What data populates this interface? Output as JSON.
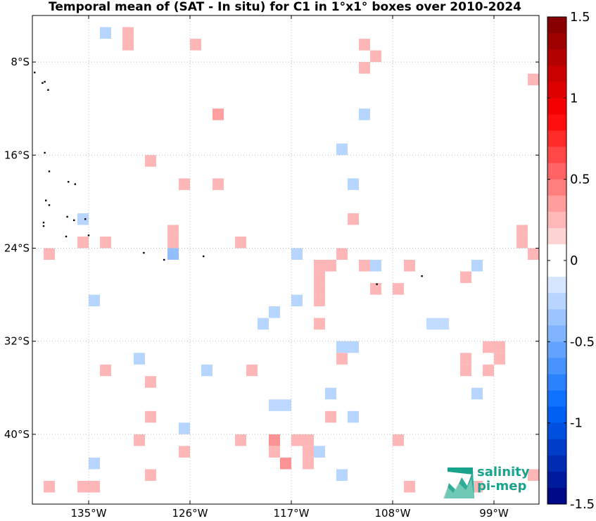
{
  "title": "Temporal mean of (SAT - In situ) for C1 in 1°x1° boxes over 2010-2024",
  "logo": {
    "line1": "salinity",
    "line2": "pi-mep"
  },
  "chart_data": {
    "type": "heatmap",
    "lon_range": [
      -140,
      -95
    ],
    "lat_range": [
      -46,
      -4
    ],
    "x_ticks": [
      -135,
      -126,
      -117,
      -108,
      -99
    ],
    "x_tick_labels": [
      "135°W",
      "126°W",
      "117°W",
      "108°W",
      "99°W"
    ],
    "y_ticks": [
      -8,
      -16,
      -24,
      -32,
      -40
    ],
    "y_tick_labels": [
      "8°S",
      "16°S",
      "24°S",
      "32°S",
      "40°S"
    ],
    "grid": true,
    "colorbar": {
      "range": [
        -1.5,
        1.5
      ],
      "ticks": [
        1.5,
        1,
        0.5,
        0,
        -0.5,
        -1,
        -1.5
      ],
      "tick_labels": [
        "1.5",
        "1",
        "0.5",
        "0",
        "-0.5",
        "-1",
        "-1.5"
      ],
      "n_levels": 30,
      "legend_placement": "right"
    },
    "cells": [
      {
        "lon": -133.5,
        "lat": -5.5,
        "value": -0.15
      },
      {
        "lon": -131.5,
        "lat": -5.5,
        "value": 0.15
      },
      {
        "lon": -131.5,
        "lat": -6.5,
        "value": 0.15
      },
      {
        "lon": -125.5,
        "lat": -6.5,
        "value": 0.15
      },
      {
        "lon": -110.5,
        "lat": -6.5,
        "value": 0.15
      },
      {
        "lon": -109.5,
        "lat": -7.5,
        "value": 0.15
      },
      {
        "lon": -110.5,
        "lat": -8.5,
        "value": 0.15
      },
      {
        "lon": -95.5,
        "lat": -9.5,
        "value": 0.15
      },
      {
        "lon": -123.5,
        "lat": -12.5,
        "value": 0.25
      },
      {
        "lon": -110.5,
        "lat": -12.5,
        "value": -0.15
      },
      {
        "lon": -112.5,
        "lat": -15.5,
        "value": -0.15
      },
      {
        "lon": -129.5,
        "lat": -16.5,
        "value": 0.15
      },
      {
        "lon": -126.5,
        "lat": -18.5,
        "value": 0.15
      },
      {
        "lon": -123.5,
        "lat": -18.5,
        "value": 0.15
      },
      {
        "lon": -111.5,
        "lat": -18.5,
        "value": -0.15
      },
      {
        "lon": -135.5,
        "lat": -21.5,
        "value": -0.15
      },
      {
        "lon": -111.5,
        "lat": -21.5,
        "value": 0.15
      },
      {
        "lon": -127.5,
        "lat": -22.5,
        "value": 0.15
      },
      {
        "lon": -96.5,
        "lat": -22.5,
        "value": 0.15
      },
      {
        "lon": -135.5,
        "lat": -23.5,
        "value": 0.15
      },
      {
        "lon": -133.5,
        "lat": -23.5,
        "value": 0.15
      },
      {
        "lon": -127.5,
        "lat": -23.5,
        "value": 0.15
      },
      {
        "lon": -121.5,
        "lat": -23.5,
        "value": 0.15
      },
      {
        "lon": -96.5,
        "lat": -23.5,
        "value": 0.15
      },
      {
        "lon": -138.5,
        "lat": -24.5,
        "value": 0.15
      },
      {
        "lon": -127.5,
        "lat": -24.5,
        "value": -0.3
      },
      {
        "lon": -116.5,
        "lat": -24.5,
        "value": -0.15
      },
      {
        "lon": -112.5,
        "lat": -24.5,
        "value": 0.15
      },
      {
        "lon": -95.5,
        "lat": -24.5,
        "value": 0.15
      },
      {
        "lon": -114.5,
        "lat": -25.5,
        "value": 0.15
      },
      {
        "lon": -113.5,
        "lat": -25.5,
        "value": 0.15
      },
      {
        "lon": -110.5,
        "lat": -25.5,
        "value": 0.15
      },
      {
        "lon": -109.5,
        "lat": -25.5,
        "value": -0.15
      },
      {
        "lon": -106.5,
        "lat": -25.5,
        "value": 0.15
      },
      {
        "lon": -100.5,
        "lat": -25.5,
        "value": -0.15
      },
      {
        "lon": -114.5,
        "lat": -26.5,
        "value": 0.15
      },
      {
        "lon": -101.5,
        "lat": -26.5,
        "value": 0.15
      },
      {
        "lon": -114.5,
        "lat": -27.5,
        "value": 0.15
      },
      {
        "lon": -109.5,
        "lat": -27.5,
        "value": 0.15
      },
      {
        "lon": -107.5,
        "lat": -27.5,
        "value": 0.15
      },
      {
        "lon": -134.5,
        "lat": -28.5,
        "value": -0.15
      },
      {
        "lon": -116.5,
        "lat": -28.5,
        "value": -0.15
      },
      {
        "lon": -114.5,
        "lat": -28.5,
        "value": 0.15
      },
      {
        "lon": -118.5,
        "lat": -29.5,
        "value": -0.15
      },
      {
        "lon": -119.5,
        "lat": -30.5,
        "value": -0.15
      },
      {
        "lon": -114.5,
        "lat": -30.5,
        "value": 0.15
      },
      {
        "lon": -104.5,
        "lat": -30.5,
        "value": -0.1
      },
      {
        "lon": -103.5,
        "lat": -30.5,
        "value": -0.1
      },
      {
        "lon": -112.5,
        "lat": -32.5,
        "value": -0.15
      },
      {
        "lon": -111.5,
        "lat": -32.5,
        "value": -0.15
      },
      {
        "lon": -99.5,
        "lat": -32.5,
        "value": 0.15
      },
      {
        "lon": -98.5,
        "lat": -32.5,
        "value": 0.15
      },
      {
        "lon": -130.5,
        "lat": -33.5,
        "value": -0.15
      },
      {
        "lon": -112.5,
        "lat": -33.5,
        "value": 0.15
      },
      {
        "lon": -101.5,
        "lat": -33.5,
        "value": 0.15
      },
      {
        "lon": -98.5,
        "lat": -33.5,
        "value": 0.15
      },
      {
        "lon": -133.5,
        "lat": -34.5,
        "value": 0.15
      },
      {
        "lon": -124.5,
        "lat": -34.5,
        "value": -0.15
      },
      {
        "lon": -120.5,
        "lat": -34.5,
        "value": 0.15
      },
      {
        "lon": -101.5,
        "lat": -34.5,
        "value": 0.15
      },
      {
        "lon": -99.5,
        "lat": -34.5,
        "value": 0.15
      },
      {
        "lon": -129.5,
        "lat": -35.5,
        "value": 0.15
      },
      {
        "lon": -113.5,
        "lat": -36.5,
        "value": -0.15
      },
      {
        "lon": -100.5,
        "lat": -36.5,
        "value": -0.15
      },
      {
        "lon": -118.5,
        "lat": -37.5,
        "value": -0.12
      },
      {
        "lon": -117.5,
        "lat": -37.5,
        "value": -0.12
      },
      {
        "lon": -129.5,
        "lat": -38.5,
        "value": 0.15
      },
      {
        "lon": -113.5,
        "lat": -38.5,
        "value": 0.15
      },
      {
        "lon": -111.5,
        "lat": -38.5,
        "value": -0.15
      },
      {
        "lon": -126.5,
        "lat": -39.5,
        "value": -0.15
      },
      {
        "lon": -130.5,
        "lat": -40.5,
        "value": 0.15
      },
      {
        "lon": -121.5,
        "lat": -40.5,
        "value": 0.15
      },
      {
        "lon": -118.5,
        "lat": -40.5,
        "value": 0.3
      },
      {
        "lon": -116.5,
        "lat": -40.5,
        "value": 0.15
      },
      {
        "lon": -115.5,
        "lat": -40.5,
        "value": 0.15
      },
      {
        "lon": -107.5,
        "lat": -40.5,
        "value": 0.15
      },
      {
        "lon": -126.5,
        "lat": -41.5,
        "value": 0.15
      },
      {
        "lon": -118.5,
        "lat": -41.5,
        "value": 0.15
      },
      {
        "lon": -115.5,
        "lat": -41.5,
        "value": 0.15
      },
      {
        "lon": -114.5,
        "lat": -41.5,
        "value": -0.15
      },
      {
        "lon": -134.5,
        "lat": -42.5,
        "value": -0.15
      },
      {
        "lon": -117.5,
        "lat": -42.5,
        "value": 0.3
      },
      {
        "lon": -115.5,
        "lat": -42.5,
        "value": 0.15
      },
      {
        "lon": -129.5,
        "lat": -43.5,
        "value": 0.15
      },
      {
        "lon": -112.5,
        "lat": -43.5,
        "value": -0.15
      },
      {
        "lon": -138.5,
        "lat": -44.5,
        "value": 0.15
      },
      {
        "lon": -135.5,
        "lat": -44.5,
        "value": 0.15
      },
      {
        "lon": -134.5,
        "lat": -44.5,
        "value": 0.15
      },
      {
        "lon": -106.5,
        "lat": -44.5,
        "value": 0.15
      },
      {
        "lon": -100.5,
        "lat": -44.5,
        "value": 0.15
      },
      {
        "lon": -95.5,
        "lat": -43.5,
        "value": 0.15
      }
    ],
    "islands": [
      {
        "lon": -139.8,
        "lat": -8.9
      },
      {
        "lon": -139.1,
        "lat": -9.8
      },
      {
        "lon": -138.9,
        "lat": -9.7
      },
      {
        "lon": -138.6,
        "lat": -10.4
      },
      {
        "lon": -138.9,
        "lat": -15.8
      },
      {
        "lon": -138.5,
        "lat": -17.4
      },
      {
        "lon": -136.8,
        "lat": -18.3
      },
      {
        "lon": -136.2,
        "lat": -18.5
      },
      {
        "lon": -138.8,
        "lat": -19.9
      },
      {
        "lon": -138.5,
        "lat": -20.3
      },
      {
        "lon": -136.9,
        "lat": -21.3
      },
      {
        "lon": -136.3,
        "lat": -21.6
      },
      {
        "lon": -135.3,
        "lat": -21.5
      },
      {
        "lon": -139.0,
        "lat": -21.8
      },
      {
        "lon": -139.0,
        "lat": -22.1
      },
      {
        "lon": -137.0,
        "lat": -23.0
      },
      {
        "lon": -135.0,
        "lat": -22.9
      },
      {
        "lon": -130.1,
        "lat": -24.4
      },
      {
        "lon": -128.3,
        "lat": -25.0
      },
      {
        "lon": -124.8,
        "lat": -24.7
      },
      {
        "lon": -109.4,
        "lat": -27.1
      },
      {
        "lon": -105.4,
        "lat": -26.4
      }
    ]
  }
}
